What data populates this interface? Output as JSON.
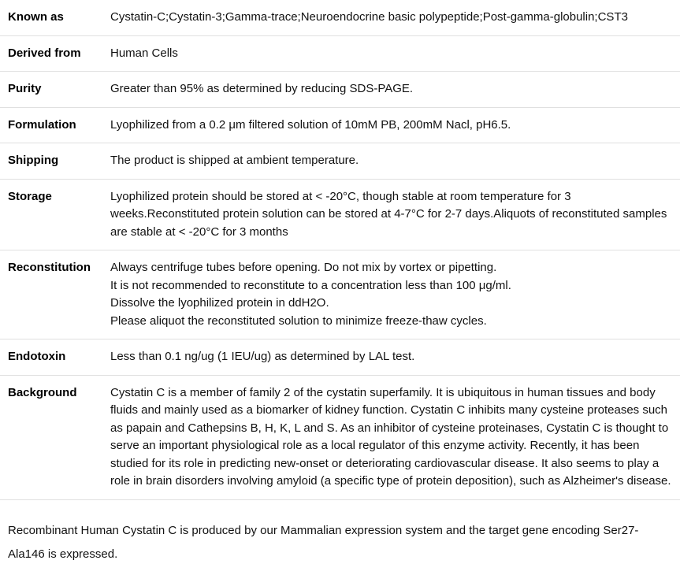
{
  "specs": [
    {
      "label": "Known as",
      "value": "Cystatin-C;Cystatin-3;Gamma-trace;Neuroendocrine basic polypeptide;Post-gamma-globulin;CST3",
      "multiline": false
    },
    {
      "label": "Derived from",
      "value": "Human Cells",
      "multiline": false
    },
    {
      "label": "Purity",
      "value": "Greater than 95% as determined by reducing SDS-PAGE.",
      "multiline": false
    },
    {
      "label": "Formulation",
      "value": "Lyophilized from a 0.2 μm filtered solution of 10mM PB, 200mM Nacl, pH6.5.",
      "multiline": false
    },
    {
      "label": "Shipping",
      "value": "The product is shipped at ambient temperature.",
      "multiline": false
    },
    {
      "label": "Storage",
      "value": "Lyophilized protein should be stored at < -20°C, though stable at room temperature for 3 weeks.Reconstituted protein solution can be stored at 4-7°C for 2-7 days.Aliquots of reconstituted samples are stable at < -20°C for 3 months",
      "multiline": false
    },
    {
      "label": "Reconstitution",
      "value": "Always centrifuge tubes before opening. Do not mix by vortex or pipetting.\nIt is not recommended to reconstitute to a concentration less than 100 μg/ml.\nDissolve the lyophilized protein in ddH2O.\nPlease aliquot the reconstituted solution to minimize freeze-thaw cycles.",
      "multiline": true
    },
    {
      "label": "Endotoxin",
      "value": "Less than 0.1 ng/ug (1 IEU/ug) as determined by LAL test.",
      "multiline": false
    },
    {
      "label": "Background",
      "value": "Cystatin C is a member of family 2 of the cystatin superfamily. It is ubiquitous in human tissues and body fluids and mainly used as a biomarker of kidney function. Cystatin C inhibits many cysteine proteases such as papain and Cathepsins B, H, K, L and S. As an inhibitor of cysteine proteinases, Cystatin C is thought to serve an important physiological role as a local regulator of this enzyme activity. Recently, it has been studied for its role in predicting new-onset or deteriorating cardiovascular disease. It also seems to play a role in brain disorders involving amyloid (a specific type of protein deposition), such as Alzheimer's disease.",
      "multiline": false
    }
  ],
  "description": "Recombinant Human Cystatin C is produced by our Mammalian expression system and the target gene encoding Ser27-Ala146 is expressed."
}
